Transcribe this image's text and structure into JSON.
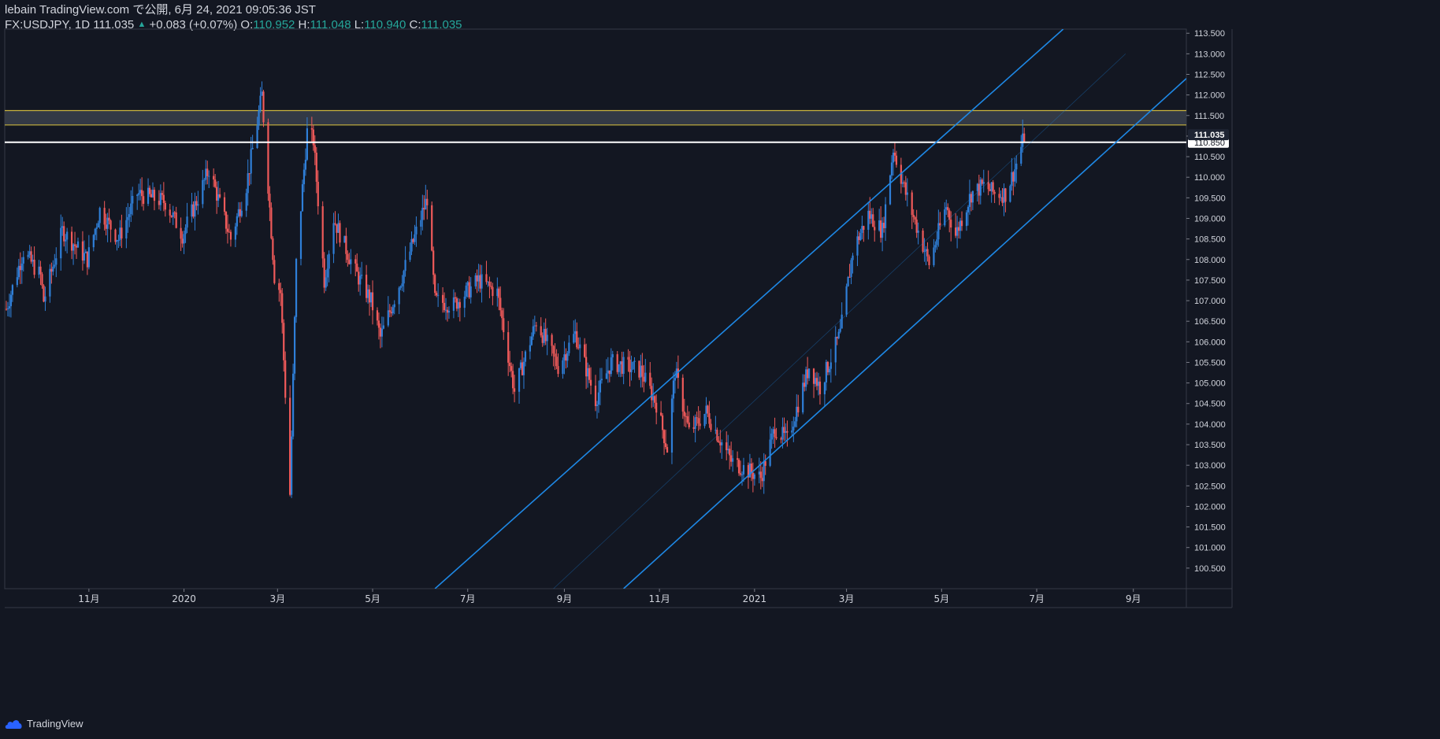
{
  "header": {
    "author": "lebain",
    "published": "TradingView.com で公開, 6月 24, 2021 09:05:36 JST",
    "symbol": "FX:USDJPY, 1D",
    "last": "111.035",
    "change": "+0.083 (+0.07%)",
    "o_label": "O:",
    "o_value": "110.952",
    "h_label": "H:",
    "h_value": "111.048",
    "l_label": "L:",
    "l_value": "110.940",
    "c_label": "C:",
    "c_value": "111.035"
  },
  "brand": {
    "name": "TradingView",
    "icon": "tradingview-cloud-icon"
  },
  "colors": {
    "background": "#131722",
    "up_candle": "#2f7fd8",
    "down_candle": "#f05a5a",
    "channel": "#1e88e5",
    "zone_border": "#c9b43f",
    "zone_fill": "#3a3f4b",
    "level_line": "#ffffff",
    "axis_text": "#d1d4dc",
    "last_price_badge_bg": "#1e2433"
  },
  "chart_data": {
    "type": "candlestick",
    "symbol": "FX:USDJPY",
    "interval": "1D",
    "ylim": [
      100.0,
      113.6
    ],
    "y_ticks": [
      "100.500",
      "101.000",
      "101.500",
      "102.000",
      "102.500",
      "103.000",
      "103.500",
      "104.000",
      "104.500",
      "105.000",
      "105.500",
      "106.000",
      "106.500",
      "107.000",
      "107.500",
      "108.000",
      "108.500",
      "109.000",
      "109.500",
      "110.000",
      "110.500",
      "111.000",
      "111.500",
      "112.000",
      "112.500",
      "113.000",
      "113.500"
    ],
    "x_ticks": [
      {
        "label": "11月",
        "date": "2019-11-01"
      },
      {
        "label": "2020",
        "date": "2020-01-01"
      },
      {
        "label": "3月",
        "date": "2020-03-01"
      },
      {
        "label": "5月",
        "date": "2020-05-01"
      },
      {
        "label": "7月",
        "date": "2020-07-01"
      },
      {
        "label": "9月",
        "date": "2020-09-01"
      },
      {
        "label": "11月",
        "date": "2020-11-01"
      },
      {
        "label": "2021",
        "date": "2021-01-01"
      },
      {
        "label": "3月",
        "date": "2021-03-01"
      },
      {
        "label": "5月",
        "date": "2021-05-01"
      },
      {
        "label": "7月",
        "date": "2021-07-01"
      },
      {
        "label": "9月",
        "date": "2021-09-01"
      }
    ],
    "x_range": [
      "2019-09-08",
      "2021-10-05"
    ],
    "price_path": [
      [
        "2019-09-09",
        106.8
      ],
      [
        "2019-09-20",
        108.2
      ],
      [
        "2019-10-01",
        107.6
      ],
      [
        "2019-10-03",
        107.0
      ],
      [
        "2019-10-15",
        108.7
      ],
      [
        "2019-10-31",
        108.0
      ],
      [
        "2019-11-08",
        109.2
      ],
      [
        "2019-11-20",
        108.5
      ],
      [
        "2019-12-02",
        109.6
      ],
      [
        "2019-12-20",
        109.4
      ],
      [
        "2019-12-31",
        108.6
      ],
      [
        "2020-01-10",
        109.5
      ],
      [
        "2020-01-17",
        110.2
      ],
      [
        "2020-01-31",
        108.5
      ],
      [
        "2020-02-10",
        109.8
      ],
      [
        "2020-02-20",
        112.0
      ],
      [
        "2020-02-28",
        107.6
      ],
      [
        "2020-03-03",
        107.2
      ],
      [
        "2020-03-09",
        102.3
      ],
      [
        "2020-03-13",
        107.9
      ],
      [
        "2020-03-20",
        111.1
      ],
      [
        "2020-03-24",
        110.9
      ],
      [
        "2020-03-31",
        107.5
      ],
      [
        "2020-04-06",
        109.0
      ],
      [
        "2020-04-20",
        107.7
      ],
      [
        "2020-04-30",
        107.0
      ],
      [
        "2020-05-06",
        106.1
      ],
      [
        "2020-05-20",
        107.6
      ],
      [
        "2020-06-05",
        109.5
      ],
      [
        "2020-06-10",
        107.0
      ],
      [
        "2020-06-22",
        106.9
      ],
      [
        "2020-07-08",
        107.5
      ],
      [
        "2020-07-20",
        107.2
      ],
      [
        "2020-07-31",
        104.8
      ],
      [
        "2020-08-14",
        106.5
      ],
      [
        "2020-08-28",
        105.4
      ],
      [
        "2020-09-08",
        106.2
      ],
      [
        "2020-09-21",
        104.6
      ],
      [
        "2020-10-01",
        105.5
      ],
      [
        "2020-10-20",
        105.3
      ],
      [
        "2020-10-30",
        104.5
      ],
      [
        "2020-11-06",
        103.4
      ],
      [
        "2020-11-11",
        105.3
      ],
      [
        "2020-11-20",
        103.8
      ],
      [
        "2020-12-01",
        104.3
      ],
      [
        "2020-12-17",
        103.1
      ],
      [
        "2021-01-05",
        102.7
      ],
      [
        "2021-01-14",
        103.9
      ],
      [
        "2021-01-22",
        103.6
      ],
      [
        "2021-02-05",
        105.4
      ],
      [
        "2021-02-12",
        104.9
      ],
      [
        "2021-02-25",
        106.2
      ],
      [
        "2021-03-05",
        108.2
      ],
      [
        "2021-03-15",
        109.1
      ],
      [
        "2021-03-24",
        108.7
      ],
      [
        "2021-03-31",
        110.7
      ],
      [
        "2021-04-08",
        109.6
      ],
      [
        "2021-04-23",
        107.9
      ],
      [
        "2021-05-04",
        109.3
      ],
      [
        "2021-05-10",
        108.6
      ],
      [
        "2021-05-20",
        109.6
      ],
      [
        "2021-05-28",
        109.8
      ],
      [
        "2021-06-04",
        109.6
      ],
      [
        "2021-06-11",
        109.6
      ],
      [
        "2021-06-17",
        110.2
      ],
      [
        "2021-06-23",
        111.0
      ]
    ],
    "horizontal_levels": [
      {
        "price": 110.85,
        "label": "110.850"
      }
    ],
    "zone": {
      "top": 111.62,
      "bottom": 111.27
    },
    "channel_lines": [
      {
        "from": [
          "2020-06-10",
          100.0
        ],
        "to": [
          "2021-07-18",
          113.6
        ]
      },
      {
        "from": [
          "2020-10-09",
          100.0
        ],
        "to": [
          "2021-10-05",
          112.4
        ]
      },
      {
        "from": [
          "2020-08-25",
          100.0
        ],
        "to": [
          "2021-08-27",
          113.0
        ],
        "faint": true
      }
    ],
    "last_price": {
      "value": 111.035,
      "label": "111.035"
    }
  }
}
